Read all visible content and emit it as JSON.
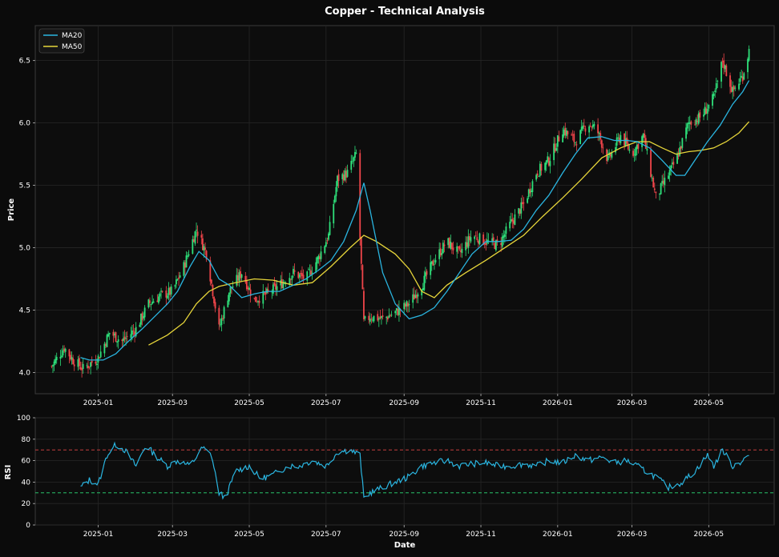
{
  "chart_data": [
    {
      "type": "candlestick",
      "title": "Copper - Technical Analysis",
      "xlabel": "",
      "ylabel": "Price",
      "ylim": [
        3.83,
        6.78
      ],
      "yticks": [
        "4.0",
        "4.5",
        "5.0",
        "5.5",
        "6.0",
        "6.5"
      ],
      "ytick_values": [
        4.0,
        4.5,
        5.0,
        5.5,
        6.0,
        6.5
      ],
      "xlim": [
        "2024-11-12",
        "2026-06-22"
      ],
      "xticks": [
        "2025-01",
        "2025-03",
        "2025-05",
        "2025-07",
        "2025-09",
        "2025-11",
        "2026-01",
        "2026-03",
        "2026-05"
      ],
      "xtick_dates": [
        "2025-01-01",
        "2025-03-01",
        "2025-05-01",
        "2025-07-01",
        "2025-09-01",
        "2025-11-01",
        "2026-01-01",
        "2026-03-01",
        "2026-05-01"
      ],
      "grid": true,
      "legend_position": "top-left",
      "legend": [
        {
          "name": "MA20",
          "color": "#2ab5e0"
        },
        {
          "name": "MA50",
          "color": "#e6d53a"
        }
      ],
      "colors": {
        "up": "#2ee07a",
        "down": "#f0454a",
        "ma20": "#2ab5e0",
        "ma50": "#e6d53a"
      },
      "series": {
        "close": {
          "dates": [
            "2024-11-25",
            "2024-12-05",
            "2024-12-12",
            "2024-12-20",
            "2025-01-01",
            "2025-01-10",
            "2025-01-20",
            "2025-01-31",
            "2025-02-10",
            "2025-02-20",
            "2025-03-01",
            "2025-03-10",
            "2025-03-20",
            "2025-03-28",
            "2025-04-07",
            "2025-04-15",
            "2025-04-25",
            "2025-05-05",
            "2025-05-15",
            "2025-05-25",
            "2025-06-05",
            "2025-06-15",
            "2025-06-25",
            "2025-07-03",
            "2025-07-10",
            "2025-07-18",
            "2025-07-25",
            "2025-07-31",
            "2025-08-05",
            "2025-08-15",
            "2025-08-25",
            "2025-09-05",
            "2025-09-15",
            "2025-09-25",
            "2025-10-05",
            "2025-10-15",
            "2025-10-25",
            "2025-11-05",
            "2025-11-15",
            "2025-11-25",
            "2025-12-05",
            "2025-12-15",
            "2025-12-25",
            "2026-01-05",
            "2026-01-15",
            "2026-01-25",
            "2026-02-01",
            "2026-02-10",
            "2026-02-20",
            "2026-03-01",
            "2026-03-10",
            "2026-03-20",
            "2026-03-28",
            "2026-04-05",
            "2026-04-15",
            "2026-04-25",
            "2026-05-05",
            "2026-05-12",
            "2026-05-20",
            "2026-05-28",
            "2026-06-02"
          ],
          "values": [
            4.05,
            4.2,
            4.1,
            4.03,
            4.12,
            4.32,
            4.25,
            4.35,
            4.55,
            4.62,
            4.65,
            4.85,
            5.15,
            4.95,
            4.35,
            4.65,
            4.8,
            4.58,
            4.63,
            4.7,
            4.8,
            4.75,
            4.92,
            5.1,
            5.55,
            5.6,
            5.75,
            4.4,
            4.45,
            4.43,
            4.48,
            4.55,
            4.7,
            4.9,
            5.05,
            4.95,
            5.1,
            5.05,
            5.02,
            5.2,
            5.35,
            5.6,
            5.7,
            5.95,
            5.85,
            6.0,
            5.95,
            5.7,
            5.9,
            5.75,
            5.9,
            5.4,
            5.55,
            5.7,
            6.0,
            6.05,
            6.2,
            6.5,
            6.25,
            6.38,
            6.58
          ]
        },
        "ma20": {
          "dates": [
            "2024-12-18",
            "2024-12-25",
            "2025-01-05",
            "2025-01-15",
            "2025-01-25",
            "2025-02-05",
            "2025-02-15",
            "2025-02-25",
            "2025-03-05",
            "2025-03-15",
            "2025-03-22",
            "2025-03-30",
            "2025-04-07",
            "2025-04-15",
            "2025-04-25",
            "2025-05-05",
            "2025-05-15",
            "2025-05-25",
            "2025-06-05",
            "2025-06-15",
            "2025-06-25",
            "2025-07-05",
            "2025-07-15",
            "2025-07-25",
            "2025-07-31",
            "2025-08-05",
            "2025-08-15",
            "2025-08-25",
            "2025-09-05",
            "2025-09-15",
            "2025-09-25",
            "2025-10-05",
            "2025-10-15",
            "2025-10-25",
            "2025-11-05",
            "2025-11-15",
            "2025-11-25",
            "2025-12-05",
            "2025-12-15",
            "2025-12-25",
            "2026-01-05",
            "2026-01-15",
            "2026-01-25",
            "2026-02-05",
            "2026-02-15",
            "2026-02-25",
            "2026-03-05",
            "2026-03-15",
            "2026-03-25",
            "2026-04-05",
            "2026-04-12",
            "2026-04-20",
            "2026-04-30",
            "2026-05-10",
            "2026-05-20",
            "2026-05-28",
            "2026-06-02"
          ],
          "values": [
            4.12,
            4.1,
            4.1,
            4.15,
            4.25,
            4.35,
            4.45,
            4.55,
            4.65,
            4.85,
            4.97,
            4.9,
            4.75,
            4.7,
            4.6,
            4.63,
            4.65,
            4.65,
            4.7,
            4.75,
            4.82,
            4.9,
            5.05,
            5.3,
            5.52,
            5.3,
            4.8,
            4.55,
            4.43,
            4.46,
            4.52,
            4.65,
            4.8,
            4.95,
            5.05,
            5.05,
            5.06,
            5.15,
            5.3,
            5.42,
            5.6,
            5.75,
            5.88,
            5.89,
            5.86,
            5.86,
            5.85,
            5.8,
            5.7,
            5.58,
            5.58,
            5.7,
            5.85,
            5.98,
            6.15,
            6.25,
            6.34
          ]
        },
        "ma50": {
          "dates": [
            "2025-02-10",
            "2025-02-25",
            "2025-03-10",
            "2025-03-20",
            "2025-03-30",
            "2025-04-07",
            "2025-04-20",
            "2025-05-05",
            "2025-05-20",
            "2025-06-05",
            "2025-06-20",
            "2025-07-05",
            "2025-07-20",
            "2025-07-31",
            "2025-08-10",
            "2025-08-25",
            "2025-09-05",
            "2025-09-15",
            "2025-09-25",
            "2025-10-05",
            "2025-10-20",
            "2025-11-05",
            "2025-11-20",
            "2025-12-05",
            "2025-12-20",
            "2026-01-05",
            "2026-01-20",
            "2026-02-05",
            "2026-02-20",
            "2026-03-05",
            "2026-03-15",
            "2026-03-25",
            "2026-04-05",
            "2026-04-15",
            "2026-04-25",
            "2026-05-05",
            "2026-05-15",
            "2026-05-25",
            "2026-06-02"
          ],
          "values": [
            4.22,
            4.3,
            4.4,
            4.55,
            4.65,
            4.69,
            4.72,
            4.75,
            4.74,
            4.7,
            4.72,
            4.85,
            5.0,
            5.1,
            5.05,
            4.95,
            4.83,
            4.65,
            4.6,
            4.7,
            4.8,
            4.9,
            5.0,
            5.1,
            5.25,
            5.4,
            5.55,
            5.72,
            5.8,
            5.85,
            5.85,
            5.8,
            5.75,
            5.77,
            5.78,
            5.8,
            5.85,
            5.92,
            6.01
          ]
        }
      }
    },
    {
      "type": "line",
      "title": "",
      "xlabel": "Date",
      "ylabel": "RSI",
      "ylim": [
        0,
        100
      ],
      "yticks": [
        "0",
        "20",
        "40",
        "60",
        "80",
        "100"
      ],
      "ytick_values": [
        0,
        20,
        40,
        60,
        80,
        100
      ],
      "xticks": [
        "2025-01",
        "2025-03",
        "2025-05",
        "2025-07",
        "2025-09",
        "2025-11",
        "2026-01",
        "2026-03",
        "2026-05"
      ],
      "grid": true,
      "reference_lines": [
        {
          "value": 70,
          "color": "#e04545",
          "style": "dashed"
        },
        {
          "value": 30,
          "color": "#2ee07a",
          "style": "dashed"
        }
      ],
      "series": [
        {
          "color": "#2ab5e0",
          "dates": [
            "2024-12-18",
            "2024-12-25",
            "2025-01-01",
            "2025-01-08",
            "2025-01-15",
            "2025-01-22",
            "2025-01-31",
            "2025-02-08",
            "2025-02-15",
            "2025-02-25",
            "2025-03-05",
            "2025-03-15",
            "2025-03-25",
            "2025-04-01",
            "2025-04-07",
            "2025-04-12",
            "2025-04-20",
            "2025-05-01",
            "2025-05-10",
            "2025-05-20",
            "2025-06-01",
            "2025-06-10",
            "2025-06-20",
            "2025-07-01",
            "2025-07-10",
            "2025-07-20",
            "2025-07-28",
            "2025-07-31",
            "2025-08-05",
            "2025-08-15",
            "2025-08-25",
            "2025-09-05",
            "2025-09-15",
            "2025-09-25",
            "2025-10-05",
            "2025-10-15",
            "2025-10-25",
            "2025-11-05",
            "2025-11-15",
            "2025-11-25",
            "2025-12-05",
            "2025-12-15",
            "2025-12-25",
            "2026-01-05",
            "2026-01-15",
            "2026-01-25",
            "2026-02-05",
            "2026-02-15",
            "2026-02-25",
            "2026-03-05",
            "2026-03-12",
            "2026-03-20",
            "2026-03-30",
            "2026-04-10",
            "2026-04-20",
            "2026-04-30",
            "2026-05-05",
            "2026-05-12",
            "2026-05-20",
            "2026-05-28",
            "2026-06-02"
          ],
          "values": [
            35,
            42,
            38,
            65,
            75,
            70,
            55,
            75,
            65,
            55,
            60,
            55,
            72,
            65,
            30,
            25,
            50,
            55,
            43,
            47,
            55,
            55,
            60,
            55,
            68,
            70,
            65,
            25,
            30,
            35,
            40,
            45,
            55,
            58,
            60,
            55,
            57,
            58,
            55,
            55,
            57,
            55,
            60,
            58,
            65,
            60,
            63,
            58,
            60,
            55,
            50,
            45,
            35,
            40,
            50,
            65,
            55,
            70,
            55,
            60,
            65
          ]
        }
      ]
    }
  ]
}
